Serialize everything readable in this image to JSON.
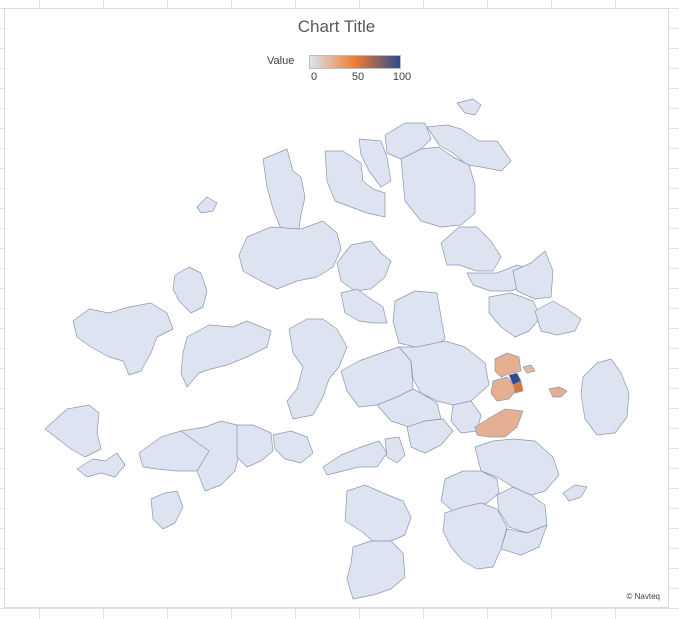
{
  "chart_data": {
    "type": "filled-map",
    "title": "Chart Title",
    "legend": {
      "title": "Value",
      "min": 0,
      "mid": 50,
      "max": 100,
      "tick_labels": [
        "0",
        "50",
        "100"
      ],
      "color_min": "#dde3f0",
      "color_mid": "#ed7d31",
      "color_max": "#2f4b8c",
      "placement": "top"
    },
    "credit": "© Navteq",
    "regions": [
      {
        "id": "r01",
        "value": 0
      },
      {
        "id": "r02",
        "value": 0
      },
      {
        "id": "r03",
        "value": 0
      },
      {
        "id": "r04",
        "value": 0
      },
      {
        "id": "r05",
        "value": 0
      },
      {
        "id": "r06",
        "value": 0
      },
      {
        "id": "r07",
        "value": 0
      },
      {
        "id": "r08",
        "value": 0
      },
      {
        "id": "r09",
        "value": 0
      },
      {
        "id": "r10",
        "value": 0
      },
      {
        "id": "r11",
        "value": 0
      },
      {
        "id": "r12",
        "value": 0
      },
      {
        "id": "r13",
        "value": 0
      },
      {
        "id": "r14",
        "value": 0
      },
      {
        "id": "r15",
        "value": 0
      },
      {
        "id": "r16",
        "value": 0
      },
      {
        "id": "r17",
        "value": 0
      },
      {
        "id": "r18",
        "value": 0
      },
      {
        "id": "r19",
        "value": 0
      },
      {
        "id": "r20",
        "value": 0
      },
      {
        "id": "r21",
        "value": 0
      },
      {
        "id": "r22",
        "value": 0
      },
      {
        "id": "r23",
        "value": 0
      },
      {
        "id": "r24",
        "value": 0
      },
      {
        "id": "r25",
        "value": 0
      },
      {
        "id": "r26",
        "value": 0
      },
      {
        "id": "r27",
        "value": 0
      },
      {
        "id": "r28",
        "value": 0
      },
      {
        "id": "r29",
        "value": 0
      },
      {
        "id": "r30",
        "value": 0
      },
      {
        "id": "r31",
        "value": 0
      },
      {
        "id": "r32",
        "value": 0
      },
      {
        "id": "r33",
        "value": 0
      },
      {
        "id": "r34",
        "value": 0
      },
      {
        "id": "r35",
        "value": 0
      },
      {
        "id": "r36",
        "value": 0
      },
      {
        "id": "r37",
        "value": 0
      },
      {
        "id": "r38",
        "value": 0
      },
      {
        "id": "r39",
        "value": 0
      },
      {
        "id": "r40",
        "value": 0
      },
      {
        "id": "r41",
        "value": 0
      },
      {
        "id": "r42",
        "value": 0
      },
      {
        "id": "r43",
        "value": 0
      },
      {
        "id": "r44",
        "value": 0
      },
      {
        "id": "h1",
        "value": 25
      },
      {
        "id": "h2",
        "value": 25
      },
      {
        "id": "h3",
        "value": 25
      },
      {
        "id": "h4",
        "value": 25
      },
      {
        "id": "h5",
        "value": 55
      },
      {
        "id": "h6",
        "value": 100
      },
      {
        "id": "h7",
        "value": 20
      }
    ]
  }
}
